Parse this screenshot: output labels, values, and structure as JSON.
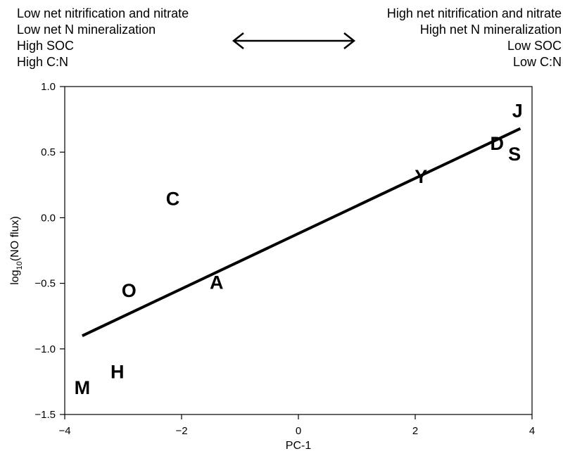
{
  "annotations": {
    "left": [
      "Low net nitrification and nitrate",
      "Low net N mineralization",
      "High SOC",
      "High C:N"
    ],
    "right": [
      "High net nitrification and nitrate",
      "High net N mineralization",
      "Low SOC",
      "Low C:N"
    ]
  },
  "chart_data": {
    "type": "scatter",
    "title": "",
    "xlabel": "PC-1",
    "ylabel_main": "log",
    "ylabel_sub": "10",
    "ylabel_rest": "(NO flux)",
    "xlim": [
      -4,
      4
    ],
    "ylim": [
      -1.5,
      1.0
    ],
    "xticks": [
      -4,
      -2,
      0,
      2,
      4
    ],
    "yticks": [
      -1.5,
      -1.0,
      -0.5,
      0.0,
      0.5,
      1.0
    ],
    "xtick_labels": [
      "−4",
      "−2",
      "0",
      "2",
      "4"
    ],
    "ytick_labels": [
      "−1.5",
      "−1.0",
      "−0.5",
      "0.0",
      "0.5",
      "1.0"
    ],
    "grid": false,
    "points": [
      {
        "label": "J",
        "x": 3.75,
        "y": 0.82
      },
      {
        "label": "D",
        "x": 3.4,
        "y": 0.57
      },
      {
        "label": "S",
        "x": 3.7,
        "y": 0.49
      },
      {
        "label": "Y",
        "x": 2.1,
        "y": 0.32
      },
      {
        "label": "C",
        "x": -2.15,
        "y": 0.15
      },
      {
        "label": "A",
        "x": -1.4,
        "y": -0.49
      },
      {
        "label": "O",
        "x": -2.9,
        "y": -0.55
      },
      {
        "label": "H",
        "x": -3.1,
        "y": -1.17
      },
      {
        "label": "M",
        "x": -3.7,
        "y": -1.29
      }
    ],
    "fit_line": {
      "x": [
        -3.7,
        3.8
      ],
      "y": [
        -0.9,
        0.68
      ]
    }
  }
}
